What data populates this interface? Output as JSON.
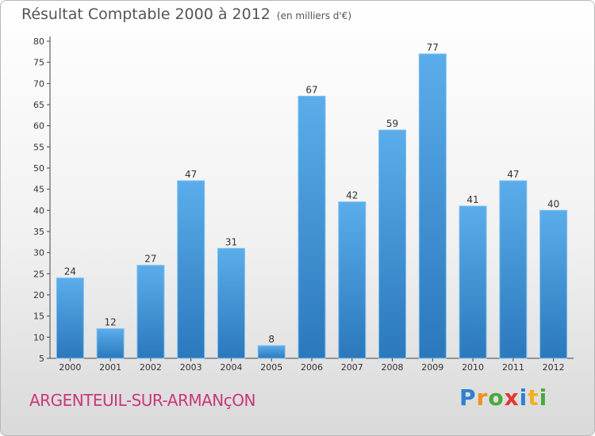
{
  "title": "Résultat Comptable 2000 à 2012",
  "subtitle": "(en milliers d'€)",
  "town": "ARGENTEUIL-SUR-ARMANçON",
  "logo": {
    "letters": [
      "P",
      "r",
      "o",
      "x",
      "i",
      "t",
      "i"
    ],
    "colors": [
      "#2f7fd0",
      "#f28e1e",
      "#49a83c",
      "#e2362f",
      "#2f7fd0",
      "#f2b01e",
      "#49a83c"
    ]
  },
  "colors": {
    "bar": "#3d92d8",
    "bar_top": "#5aadea",
    "bar_bottom": "#2b78bd"
  },
  "chart_data": {
    "type": "bar",
    "title": "Résultat Comptable 2000 à 2012",
    "categories": [
      "2000",
      "2001",
      "2002",
      "2003",
      "2004",
      "2005",
      "2006",
      "2007",
      "2008",
      "2009",
      "2010",
      "2011",
      "2012"
    ],
    "values": [
      24,
      12,
      27,
      47,
      31,
      8,
      67,
      42,
      59,
      77,
      41,
      47,
      40
    ],
    "xlabel": "",
    "ylabel": "",
    "ylim": [
      5,
      80
    ],
    "yticks": [
      5,
      10,
      15,
      20,
      25,
      30,
      35,
      40,
      45,
      50,
      55,
      60,
      65,
      70,
      75,
      80
    ],
    "grid": false
  }
}
